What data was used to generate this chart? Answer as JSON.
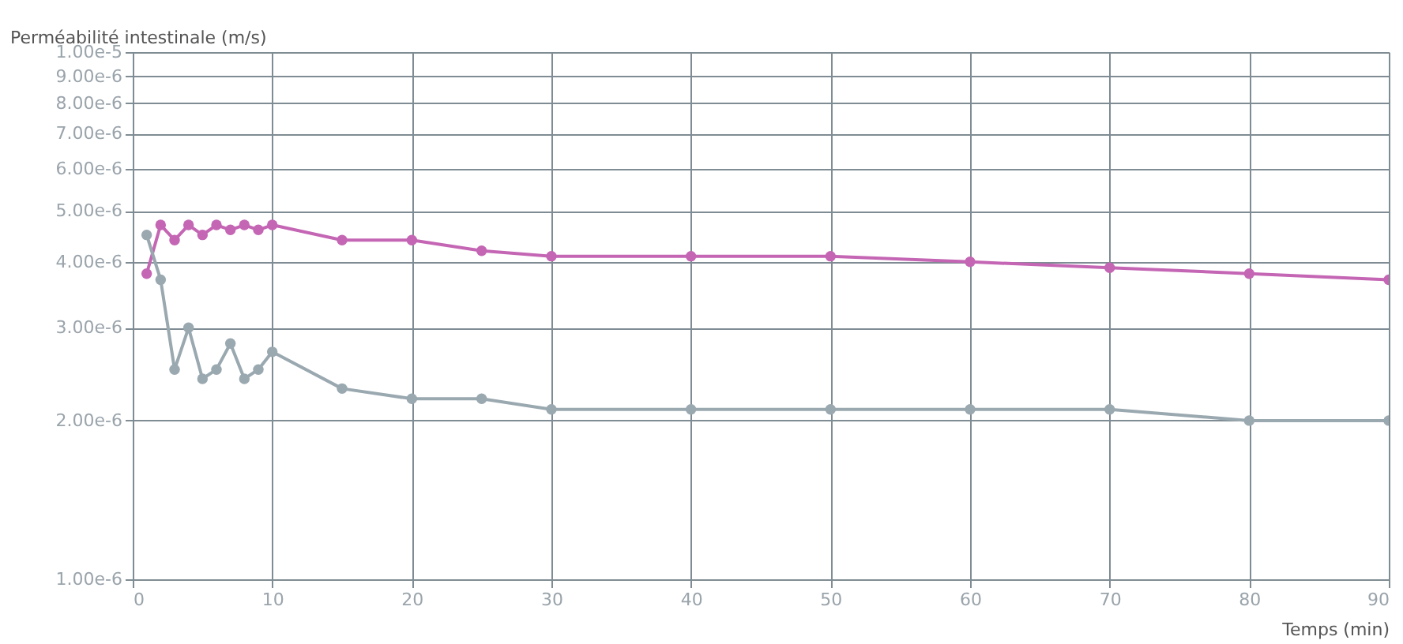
{
  "chart_data": {
    "type": "line",
    "ylabel": "Perméabilité intestinale (m/s)",
    "xlabel": "Temps (min)",
    "x": [
      1,
      2,
      3,
      4,
      5,
      6,
      7,
      8,
      9,
      10,
      15,
      20,
      25,
      30,
      40,
      50,
      60,
      70,
      80,
      90
    ],
    "series": [
      {
        "color": "#c466b4",
        "values": [
          3.8e-06,
          4.7e-06,
          4.4e-06,
          4.7e-06,
          4.5e-06,
          4.7e-06,
          4.6e-06,
          4.7e-06,
          4.6e-06,
          4.7e-06,
          4.4e-06,
          4.4e-06,
          4.2e-06,
          4.1e-06,
          4.1e-06,
          4.1e-06,
          4e-06,
          3.9e-06,
          3.8e-06,
          3.7e-06
        ]
      },
      {
        "color": "#9aa8b0",
        "values": [
          4.5e-06,
          3.7e-06,
          2.5e-06,
          3e-06,
          2.4e-06,
          2.5e-06,
          2.8e-06,
          2.4e-06,
          2.5e-06,
          2.7e-06,
          2.3e-06,
          2.2e-06,
          2.2e-06,
          2.1e-06,
          2.1e-06,
          2.1e-06,
          2.1e-06,
          2.1e-06,
          2e-06,
          2e-06
        ]
      }
    ],
    "xlim": [
      0,
      90
    ],
    "xticks": [
      0,
      10,
      20,
      30,
      40,
      50,
      60,
      70,
      80,
      90
    ],
    "ylim": [
      1e-06,
      1e-05
    ],
    "log": "y",
    "yticks": [
      {
        "value": 1e-06,
        "label": "1.00e-6"
      },
      {
        "value": 2e-06,
        "label": "2.00e-6"
      },
      {
        "value": 3e-06,
        "label": "3.00e-6"
      },
      {
        "value": 4e-06,
        "label": "4.00e-6"
      },
      {
        "value": 5e-06,
        "label": "5.00e-6"
      },
      {
        "value": 6e-06,
        "label": "6.00e-6"
      },
      {
        "value": 7e-06,
        "label": "7.00e-6"
      },
      {
        "value": 8e-06,
        "label": "8.00e-6"
      },
      {
        "value": 9e-06,
        "label": "9.00e-6"
      },
      {
        "value": 1e-05,
        "label": "1.00e-5"
      }
    ],
    "grid": true,
    "marker": "circle",
    "line_style": "solid",
    "legend": false
  }
}
